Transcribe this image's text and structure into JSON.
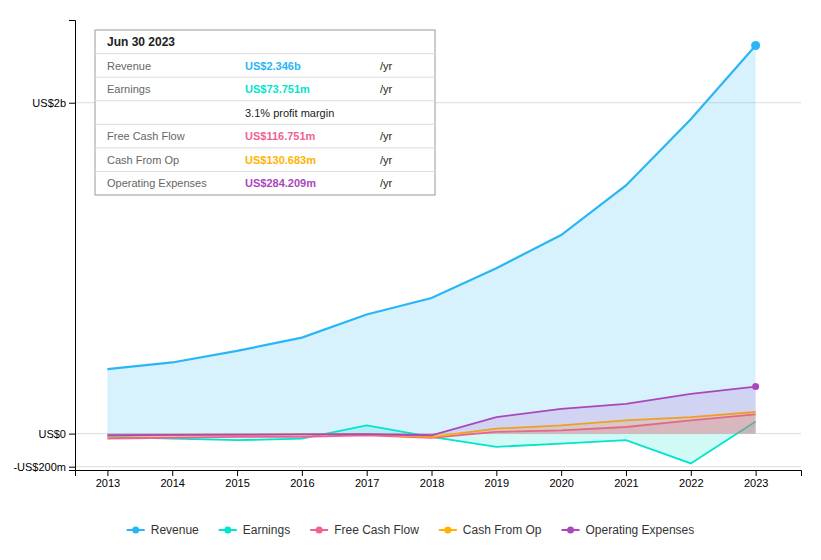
{
  "chart_data": {
    "type": "area",
    "x": [
      2013,
      2014,
      2015,
      2016,
      2017,
      2018,
      2019,
      2020,
      2021,
      2022,
      2023
    ],
    "series": [
      {
        "name": "Revenue",
        "color": "#29b6f6",
        "marker": "end",
        "values": [
          390,
          430,
          500,
          580,
          720,
          820,
          1000,
          1200,
          1500,
          1900,
          2346
        ]
      },
      {
        "name": "Earnings",
        "color": "#00e5cc",
        "values": [
          -20,
          -30,
          -40,
          -30,
          50,
          -20,
          -80,
          -60,
          -40,
          -180,
          73.751
        ]
      },
      {
        "name": "Free Cash Flow",
        "color": "#f06292",
        "values": [
          -30,
          -25,
          -20,
          -20,
          -10,
          -25,
          10,
          20,
          40,
          80,
          116.751
        ]
      },
      {
        "name": "Cash From Op",
        "color": "#ffb300",
        "values": [
          -15,
          -10,
          -8,
          -5,
          -5,
          -20,
          30,
          50,
          80,
          100,
          130.683
        ]
      },
      {
        "name": "Operating Expenses",
        "color": "#ab47bc",
        "marker": "end",
        "values": [
          -10,
          -8,
          -6,
          -5,
          -4,
          -10,
          100,
          150,
          180,
          240,
          284.209
        ]
      }
    ],
    "xlim": [
      2012.5,
      2023.7
    ],
    "xticks": [
      2013,
      2014,
      2015,
      2016,
      2017,
      2018,
      2019,
      2020,
      2021,
      2022,
      2023
    ],
    "ylim": [
      -220,
      2500
    ],
    "yticks": [
      {
        "value": -200,
        "label": "-US$200m"
      },
      {
        "value": 0,
        "label": "US$0"
      },
      {
        "value": 2000,
        "label": "US$2b"
      }
    ],
    "grid": true,
    "legend": "bottom",
    "tooltip": {
      "title": "Jun 30 2023",
      "rows": [
        {
          "label": "Revenue",
          "value": "US$2.346b",
          "unit": "/yr",
          "color": "#29b6f6"
        },
        {
          "label": "Earnings",
          "value": "US$73.751m",
          "unit": "/yr",
          "color": "#00e5cc"
        },
        {
          "value": "3.1% profit margin"
        },
        {
          "label": "Free Cash Flow",
          "value": "US$116.751m",
          "unit": "/yr",
          "color": "#f06292"
        },
        {
          "label": "Cash From Op",
          "value": "US$130.683m",
          "unit": "/yr",
          "color": "#ffb300"
        },
        {
          "label": "Operating Expenses",
          "value": "US$284.209m",
          "unit": "/yr",
          "color": "#ab47bc"
        }
      ]
    }
  }
}
